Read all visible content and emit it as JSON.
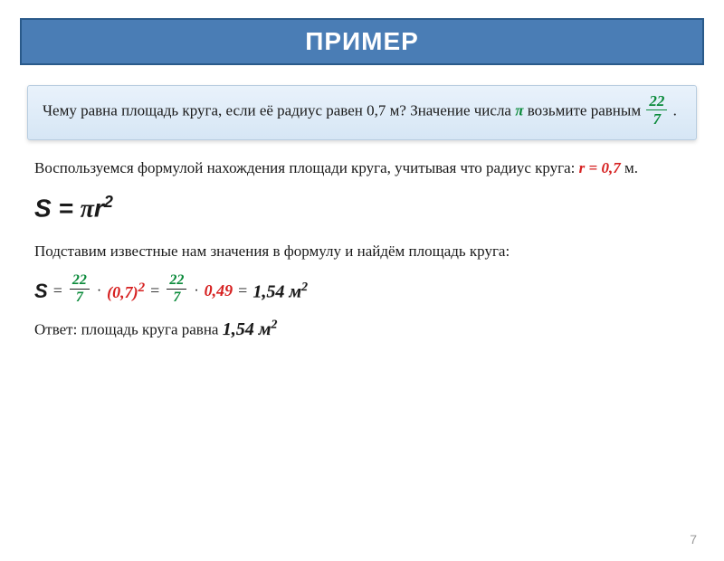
{
  "title": "ПРИМЕР",
  "problem": {
    "line1_a": "Чему равна площадь круга, если её радиус равен 0,7 м?",
    "line2_a": "Значение числа ",
    "pi": "π",
    "line2_b": " возьмите равным ",
    "frac_num": "22",
    "frac_den": "7",
    "line2_c": " ."
  },
  "body": {
    "p1_a": "Воспользуемся формулой нахождения площади круга, учитывая что радиус круга: ",
    "r_eq": "r = 0,7",
    "p1_b": " м.",
    "formula_S": "S",
    "formula_eq": " = ",
    "formula_pi": "π",
    "formula_r": "r",
    "formula_exp": "2",
    "p2": "Подставим известные нам значения в формулу и найдём площадь круга:",
    "calc": {
      "S": "S",
      "eq": "=",
      "f1_num": "22",
      "f1_den": "7",
      "dot": "·",
      "r2": "(0,7)",
      "r2_exp": "2",
      "f2_num": "22",
      "f2_den": "7",
      "val049": "0,49",
      "result": "1,54 м",
      "result_exp": "2"
    },
    "answer_a": "Ответ: площадь круга равна ",
    "answer_val": "1,54 м",
    "answer_exp": "2"
  },
  "page": "7",
  "colors": {
    "title_bg": "#4a7db5",
    "title_border": "#2a5a8a",
    "box_top": "#e9f2fb",
    "box_bottom": "#d6e6f5",
    "green": "#0a8a3a",
    "red": "#d62020",
    "text": "#1a1a1a",
    "page_num": "#9a9a9a"
  }
}
